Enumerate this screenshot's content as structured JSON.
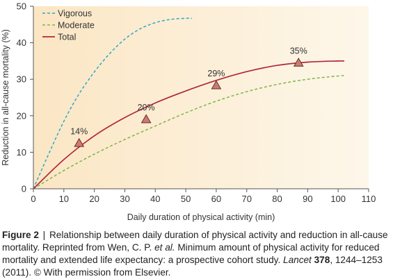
{
  "chart_data": {
    "type": "line",
    "xlabel": "Daily duration of physical activity (min)",
    "ylabel": "Reduction in all-cause mortality (%)",
    "xlim": [
      0,
      110
    ],
    "ylim": [
      0,
      50
    ],
    "xticks": [
      0,
      10,
      20,
      30,
      40,
      50,
      60,
      70,
      80,
      90,
      100,
      110
    ],
    "yticks": [
      0,
      10,
      20,
      30,
      40,
      50
    ],
    "grid": false,
    "legend_position": "top-left",
    "series": [
      {
        "name": "Vigorous",
        "style": "dashed",
        "color": "#2aa8c8",
        "x": [
          0,
          5,
          10,
          15,
          20,
          25,
          30,
          35,
          40,
          45,
          50,
          52
        ],
        "y": [
          0,
          9.5,
          18.5,
          26,
          32,
          37,
          41,
          43.8,
          45.5,
          46.4,
          46.7,
          46.7
        ]
      },
      {
        "name": "Moderate",
        "style": "dashed",
        "color": "#7ab648",
        "x": [
          0,
          10,
          20,
          30,
          40,
          50,
          60,
          70,
          80,
          90,
          100,
          102
        ],
        "y": [
          0,
          5,
          9.5,
          13.5,
          17.2,
          20.8,
          24,
          26.6,
          28.6,
          30,
          30.9,
          31
        ]
      },
      {
        "name": "Total",
        "style": "solid",
        "color": "#b0263a",
        "x": [
          0,
          10,
          20,
          30,
          40,
          50,
          60,
          70,
          80,
          90,
          100,
          102
        ],
        "y": [
          0,
          8,
          14.5,
          19.5,
          23.5,
          26.8,
          29.7,
          32.1,
          33.8,
          34.7,
          35,
          35
        ]
      }
    ],
    "markers": [
      {
        "x": 15,
        "y": 12.5,
        "label": "14%"
      },
      {
        "x": 37,
        "y": 19,
        "label": "20%"
      },
      {
        "x": 60,
        "y": 28.3,
        "label": "29%"
      },
      {
        "x": 87,
        "y": 34.5,
        "label": "35%"
      }
    ],
    "colors": {
      "marker_fill": "#c97d72",
      "marker_stroke": "#6a2a26",
      "background_start": "#fbe6c4",
      "background_end": "#fdf7ea",
      "axis": "#555555"
    }
  },
  "caption": {
    "label": "Figure 2",
    "separator": "|",
    "text_1": "Relationship between daily duration of physical activity and reduction in all-cause mortality. Reprinted from Wen, C. P. ",
    "et_al": "et al.",
    "text_2": " Minimum amount of physical activity for reduced mortality and extended life expectancy: a prospective cohort study. ",
    "journal": "Lancet",
    "volume": "378",
    "text_3": ", 1244–1253 (2011). © With permission from Elsevier."
  }
}
